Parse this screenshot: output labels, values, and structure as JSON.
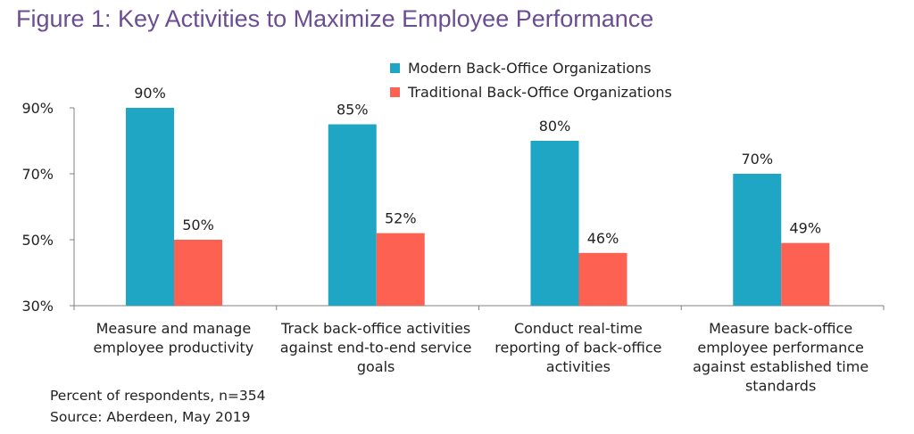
{
  "chart_data": {
    "type": "bar",
    "title": "Figure 1: Key Activities to Maximize Employee Performance",
    "categories": [
      [
        "Measure and manage",
        "employee productivity"
      ],
      [
        "Track back-office activities",
        "against end-to-end service",
        "goals"
      ],
      [
        "Conduct real-time",
        "reporting of back-office",
        "activities"
      ],
      [
        "Measure back-office",
        "employee performance",
        "against established time",
        "standards"
      ]
    ],
    "series": [
      {
        "name": "Modern Back-Office Organizations",
        "color": "#1ea6c4",
        "values": [
          90,
          85,
          80,
          70
        ],
        "labels": [
          "90%",
          "85%",
          "80%",
          "70%"
        ]
      },
      {
        "name": "Traditional Back-Office Organizations",
        "color": "#fd6152",
        "values": [
          50,
          52,
          46,
          49
        ],
        "labels": [
          "50%",
          "52%",
          "46%",
          "49%"
        ]
      }
    ],
    "ylim": [
      30,
      90
    ],
    "yticks": [
      30,
      50,
      70,
      90
    ],
    "ytick_labels": [
      "30%",
      "50%",
      "70%",
      "90%"
    ],
    "legend_position": "top-center",
    "grid": false
  },
  "notes": {
    "respondents": "Percent of respondents, n=354",
    "source": "Source: Aberdeen, May 2019"
  }
}
